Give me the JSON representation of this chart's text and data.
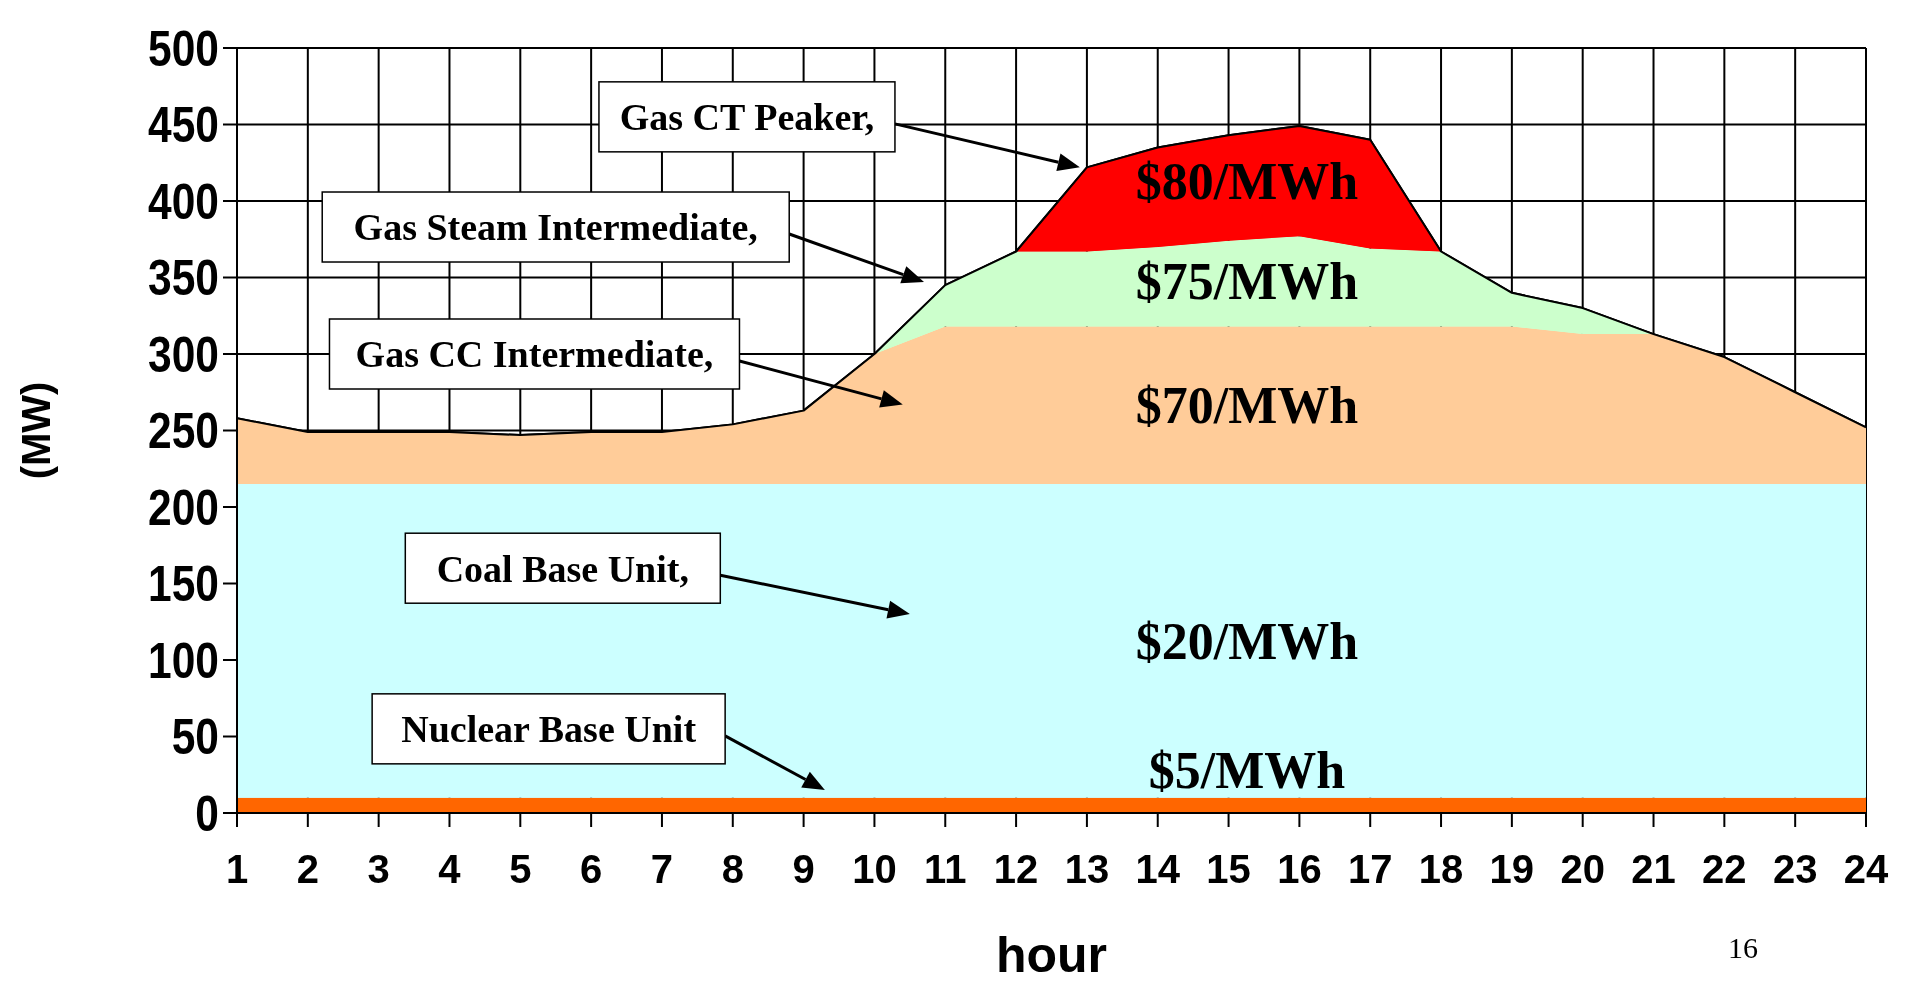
{
  "chart_data": {
    "type": "area",
    "stacked": true,
    "xlabel": "hour",
    "ylabel": "(MW)",
    "x": [
      1,
      2,
      3,
      4,
      5,
      6,
      7,
      8,
      9,
      10,
      11,
      12,
      13,
      14,
      15,
      16,
      17,
      18,
      19,
      20,
      21,
      22,
      23,
      24
    ],
    "xlim": [
      1,
      24
    ],
    "xticks": [
      1,
      2,
      3,
      4,
      5,
      6,
      7,
      8,
      9,
      10,
      11,
      12,
      13,
      14,
      15,
      16,
      17,
      18,
      19,
      20,
      21,
      22,
      23,
      24
    ],
    "ylim": [
      0,
      500
    ],
    "yticks": [
      0,
      50,
      100,
      150,
      200,
      250,
      300,
      350,
      400,
      450,
      500
    ],
    "grid": true,
    "series": [
      {
        "name": "$5/MWh",
        "color": "#ff6600",
        "values": [
          10,
          10,
          10,
          10,
          10,
          10,
          10,
          10,
          10,
          10,
          10,
          10,
          10,
          10,
          10,
          10,
          10,
          10,
          10,
          10,
          10,
          10,
          10,
          10
        ]
      },
      {
        "name": "$20/MWh",
        "color": "#ccffff",
        "values": [
          205,
          205,
          205,
          205,
          205,
          205,
          205,
          205,
          205,
          205,
          205,
          205,
          205,
          205,
          205,
          205,
          205,
          205,
          205,
          205,
          205,
          205,
          205,
          205
        ]
      },
      {
        "name": "$70/MWh",
        "color": "#ffcc99",
        "values": [
          43,
          34,
          34,
          34,
          32,
          34,
          34,
          39,
          48,
          85,
          103,
          103,
          103,
          103,
          103,
          103,
          103,
          103,
          103,
          98,
          98,
          83,
          60,
          37
        ]
      },
      {
        "name": "$75/MWh",
        "color": "#ccffcc",
        "values": [
          0,
          0,
          0,
          0,
          0,
          0,
          0,
          0,
          0,
          0,
          27,
          49,
          49,
          52,
          56,
          59,
          51,
          49,
          22,
          17,
          0,
          0,
          0,
          0
        ]
      },
      {
        "name": "$80/MWh",
        "color": "#ff0000",
        "values": [
          0,
          0,
          0,
          0,
          0,
          0,
          0,
          0,
          0,
          0,
          0,
          0,
          55,
          65,
          69,
          72,
          71,
          0,
          0,
          0,
          0,
          0,
          0,
          0
        ]
      }
    ],
    "annotations": [
      "Gas CT Peaker,",
      "Gas Steam Intermediate,",
      "Gas CC Intermediate,",
      "Coal Base Unit,",
      "Nuclear Base Unit",
      "16"
    ]
  }
}
